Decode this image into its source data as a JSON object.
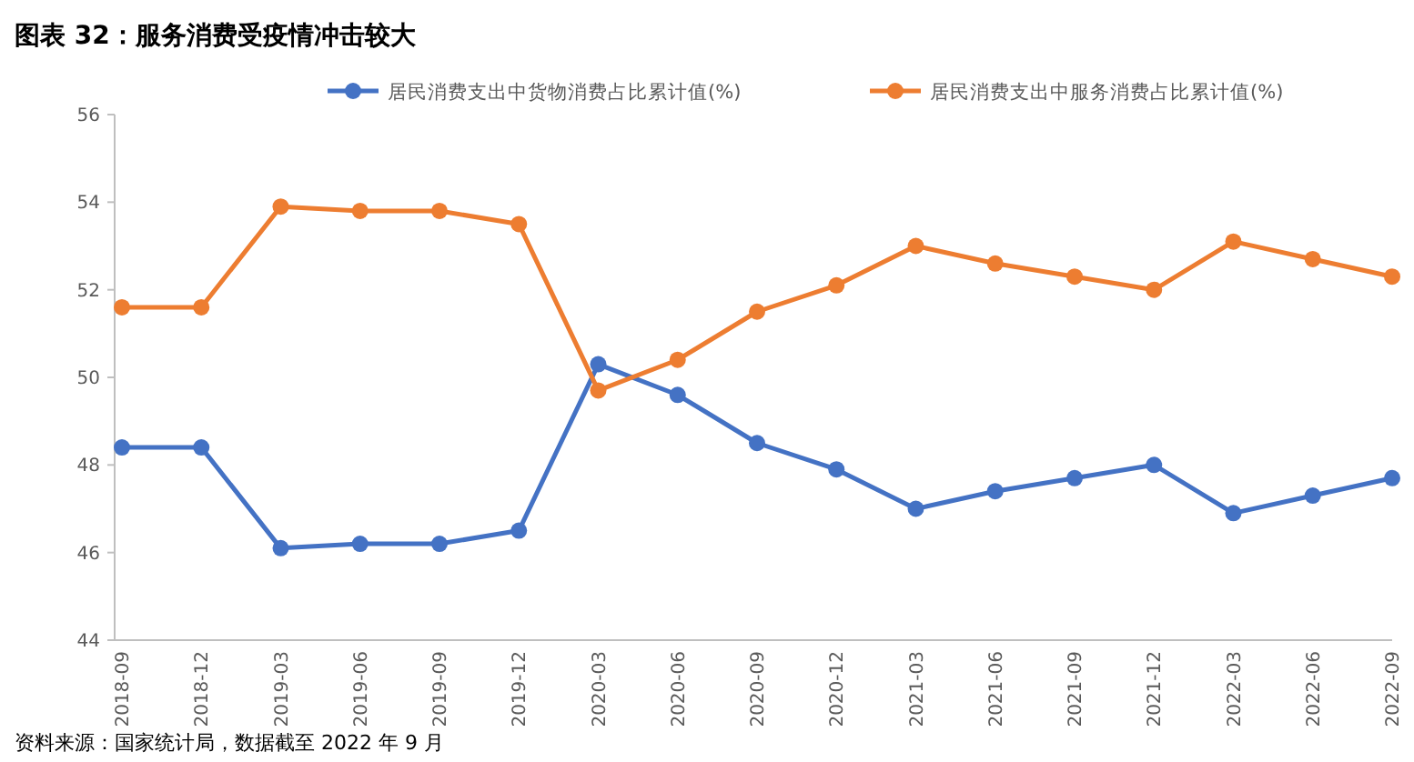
{
  "chart_data": {
    "type": "line",
    "title": "图表 32：服务消费受疫情冲击较大",
    "categories": [
      "2018-09",
      "2018-12",
      "2019-03",
      "2019-06",
      "2019-09",
      "2019-12",
      "2020-03",
      "2020-06",
      "2020-09",
      "2020-12",
      "2021-03",
      "2021-06",
      "2021-09",
      "2021-12",
      "2022-03",
      "2022-06",
      "2022-09"
    ],
    "series": [
      {
        "name": "居民消费支出中货物消费占比累计值(%)",
        "color": "#4472c4",
        "values": [
          48.4,
          48.4,
          46.1,
          46.2,
          46.2,
          46.5,
          50.3,
          49.6,
          48.5,
          47.9,
          47.0,
          47.4,
          47.7,
          48.0,
          46.9,
          47.3,
          47.7
        ]
      },
      {
        "name": "居民消费支出中服务消费占比累计值(%)",
        "color": "#ed7d31",
        "values": [
          51.6,
          51.6,
          53.9,
          53.8,
          53.8,
          53.5,
          49.7,
          50.4,
          51.5,
          52.1,
          53.0,
          52.6,
          52.3,
          52.0,
          53.1,
          52.7,
          52.3
        ]
      }
    ],
    "ylim": [
      44,
      56
    ],
    "yticks": [
      44,
      46,
      48,
      50,
      52,
      54,
      56
    ],
    "grid": false,
    "legend": "top",
    "marker": "circle",
    "line_style": "solid",
    "annotations": [
      "资料来源：国家统计局，数据截至 2022 年 9 月"
    ]
  }
}
